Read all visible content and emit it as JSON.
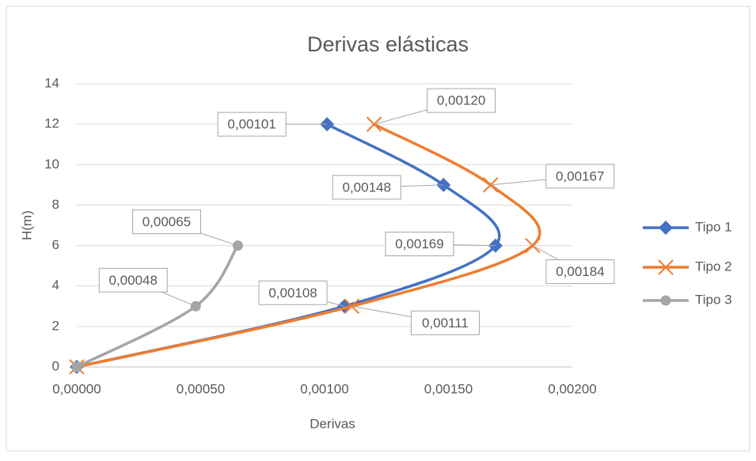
{
  "chart_data": {
    "type": "scatter",
    "title": "Derivas elásticas",
    "x_label": "Derivas",
    "y_label": "H(m)",
    "xlim": [
      0,
      0.002
    ],
    "xticks": [
      {
        "value": 0,
        "label": "0,00000"
      },
      {
        "value": 0.0005,
        "label": "0,00050"
      },
      {
        "value": 0.001,
        "label": "0,00100"
      },
      {
        "value": 0.0015,
        "label": "0,00150"
      },
      {
        "value": 0.002,
        "label": "0,00200"
      }
    ],
    "ylim": [
      0,
      14
    ],
    "yticks": [
      0,
      2,
      4,
      6,
      8,
      10,
      12,
      14
    ],
    "grid": true,
    "smooth": true,
    "legend": "right",
    "series": [
      {
        "name": "Tipo 1",
        "color": "#4472c4",
        "marker": "diamond",
        "x": [
          0,
          0.00108,
          0.00169,
          0.00148,
          0.00101
        ],
        "values": [
          0,
          3,
          6,
          9,
          12
        ],
        "value_labels": [
          null,
          "0,00108",
          "0,00169",
          "0,00148",
          "0,00101"
        ]
      },
      {
        "name": "Tipo 2",
        "color": "#ed7d31",
        "marker": "x",
        "x": [
          0,
          0.00111,
          0.00184,
          0.00167,
          0.0012
        ],
        "values": [
          0,
          3,
          6,
          9,
          12
        ],
        "value_labels": [
          null,
          "0,00111",
          "0,00184",
          "0,00167",
          "0,00120"
        ]
      },
      {
        "name": "Tipo 3",
        "color": "#a5a5a5",
        "marker": "circle",
        "x": [
          0,
          0.00048,
          0.00065
        ],
        "values": [
          0,
          3,
          6
        ],
        "value_labels": [
          null,
          "0,00048",
          "0,00065"
        ]
      }
    ]
  }
}
